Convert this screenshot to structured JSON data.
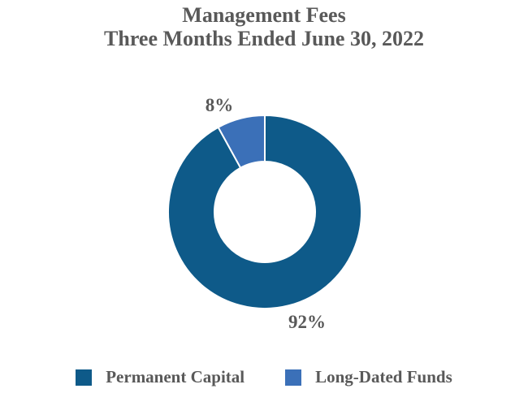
{
  "title": {
    "line1": "Management Fees",
    "line2": "Three Months Ended June 30, 2022"
  },
  "chart_data": {
    "type": "pie",
    "donut": true,
    "hole_ratio": 0.51,
    "title": "Management Fees — Three Months Ended June 30, 2022",
    "categories": [
      "Permanent Capital",
      "Long-Dated Funds"
    ],
    "values": [
      92,
      8
    ],
    "unit": "%",
    "slice_label_texts": [
      "92%",
      "8%"
    ],
    "colors": [
      "#0E5A89",
      "#3B70B8"
    ],
    "start_angle": "top",
    "direction": "clockwise",
    "slice_border_color": "#ffffff",
    "legend_position": "bottom",
    "label_color": "#595959"
  },
  "legend": {
    "items": [
      {
        "label": "Permanent Capital"
      },
      {
        "label": "Long-Dated Funds"
      }
    ]
  }
}
